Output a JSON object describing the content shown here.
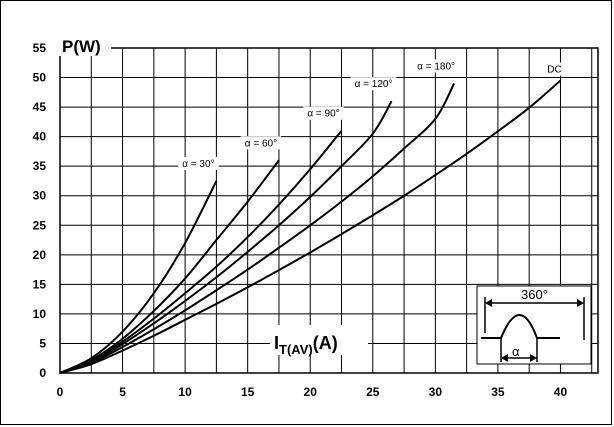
{
  "chart_data": {
    "type": "line",
    "ylabel": "P(W)",
    "xlabel_main": "I",
    "xlabel_sub": "T(AV)",
    "xlabel_unit": "(A)",
    "xlim": [
      0,
      43
    ],
    "ylim": [
      0,
      55
    ],
    "x_ticks": [
      "0",
      "5",
      "10",
      "15",
      "20",
      "25",
      "30",
      "35",
      "40"
    ],
    "y_ticks": [
      "0",
      "5",
      "10",
      "15",
      "20",
      "25",
      "30",
      "35",
      "40",
      "45",
      "50",
      "55"
    ],
    "grid": true,
    "series": [
      {
        "name": "α = 30°",
        "x": [
          0,
          2.5,
          5,
          7.5,
          10,
          12.5
        ],
        "y": [
          0,
          2.5,
          7,
          13.5,
          22,
          32.5
        ]
      },
      {
        "name": "α = 60°",
        "x": [
          0,
          2.5,
          5,
          7.5,
          10,
          12.5,
          15,
          17.5
        ],
        "y": [
          0,
          2.2,
          5.8,
          10.5,
          16,
          22.5,
          29,
          36
        ]
      },
      {
        "name": "α = 90°",
        "x": [
          0,
          2.5,
          5,
          7.5,
          10,
          12.5,
          15,
          17.5,
          20,
          22.5
        ],
        "y": [
          0,
          2,
          5.3,
          9.2,
          13.5,
          18,
          23,
          28.5,
          34.5,
          41
        ]
      },
      {
        "name": "α = 120°",
        "x": [
          0,
          2.5,
          5,
          7.5,
          10,
          12.5,
          15,
          17.5,
          20,
          22.5,
          25,
          26.5
        ],
        "y": [
          0,
          1.9,
          4.9,
          8.4,
          12.2,
          16.2,
          20.5,
          25,
          29.8,
          35,
          40.5,
          46
        ]
      },
      {
        "name": "α = 180°",
        "x": [
          0,
          2.5,
          5,
          7.5,
          10,
          12.5,
          15,
          17.5,
          20,
          22.5,
          25,
          27.5,
          30,
          31.5
        ],
        "y": [
          0,
          1.7,
          4.4,
          7.4,
          10.6,
          14,
          17.5,
          21.2,
          25,
          29,
          33.3,
          38,
          43,
          49
        ]
      },
      {
        "name": "DC",
        "x": [
          0,
          2.5,
          5,
          7.5,
          10,
          12.5,
          15,
          17.5,
          20,
          22.5,
          25,
          27.5,
          30,
          32.5,
          35,
          37.5,
          40
        ],
        "y": [
          0,
          1.5,
          3.8,
          6.3,
          9,
          11.7,
          14.5,
          17.4,
          20.4,
          23.5,
          26.7,
          30,
          33.5,
          37.1,
          40.9,
          44.9,
          49.5
        ]
      }
    ],
    "inset": {
      "period_label": "360°",
      "conduction_label": "α"
    }
  },
  "colors": {
    "line": "#000000",
    "grid": "#000000",
    "background": "#ffffff"
  }
}
